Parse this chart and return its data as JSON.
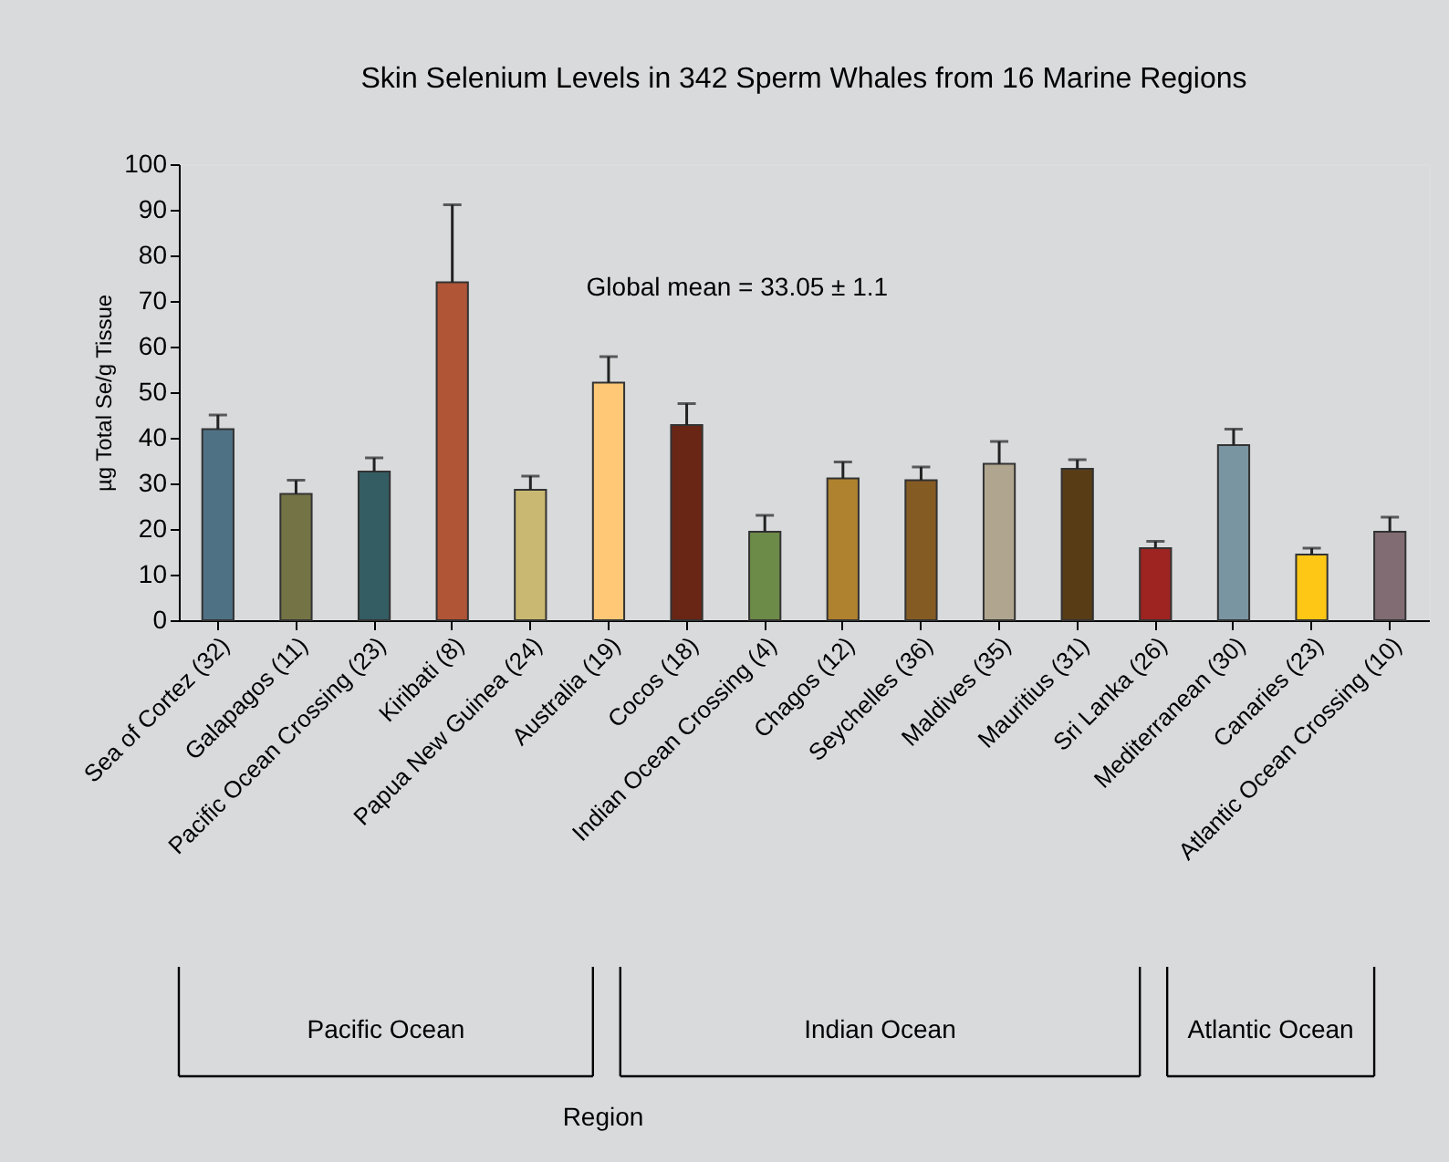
{
  "chart_data": {
    "type": "bar",
    "title": "Skin Selenium Levels in 342 Sperm Whales from 16 Marine Regions",
    "ylabel": "µg Total Se/g Tissue",
    "categories": [
      "Sea of Cortez (32)",
      "Galapagos (11)",
      "Pacific Ocean Crossing (23)",
      "Kiribati (8)",
      "Papua New Guinea (24)",
      "Australia (19)",
      "Cocos (18)",
      "Indian Ocean Crossing (4)",
      "Chagos (12)",
      "Seychelles (36)",
      "Maldives (35)",
      "Mauritius (31)",
      "Sri Lanka (26)",
      "Mediterranean (30)",
      "Canaries (23)",
      "Atlantic Ocean Crossing (10)"
    ],
    "values": [
      41.9,
      27.7,
      32.6,
      74.1,
      28.6,
      52.1,
      42.8,
      19.4,
      31.1,
      30.7,
      34.3,
      33.2,
      15.8,
      38.4,
      14.4,
      19.4
    ],
    "colors": [
      "#4f7184",
      "#747345",
      "#335c63",
      "#b15537",
      "#c9b871",
      "#fec877",
      "#692615",
      "#6c8a48",
      "#ae822e",
      "#855b24",
      "#b0a58e",
      "#573c16",
      "#9d2421",
      "#7a95a2",
      "#fec716",
      "#806c72"
    ],
    "errors": [
      [
        41.9,
        45.0
      ],
      [
        27.7,
        30.7
      ],
      [
        32.6,
        35.6
      ],
      [
        74.1,
        91.1
      ],
      [
        28.6,
        31.6
      ],
      [
        52.1,
        57.8
      ],
      [
        42.8,
        47.5
      ],
      [
        19.4,
        23.0
      ],
      [
        31.1,
        34.7
      ],
      [
        30.7,
        33.6
      ],
      [
        34.3,
        39.2
      ],
      [
        33.2,
        35.2
      ],
      [
        15.8,
        17.3
      ],
      [
        38.4,
        41.9
      ],
      [
        14.4,
        15.8
      ],
      [
        19.4,
        22.6
      ]
    ],
    "ylim": [
      0,
      100
    ],
    "yticks": [
      0,
      10,
      20,
      30,
      40,
      50,
      60,
      70,
      80,
      90,
      100
    ],
    "legend": false,
    "annotations": [
      "Global mean = 33.05 ± 1.1",
      "Region",
      "Pacific Ocean",
      "Indian Ocean",
      "Atlantic Ocean"
    ]
  }
}
